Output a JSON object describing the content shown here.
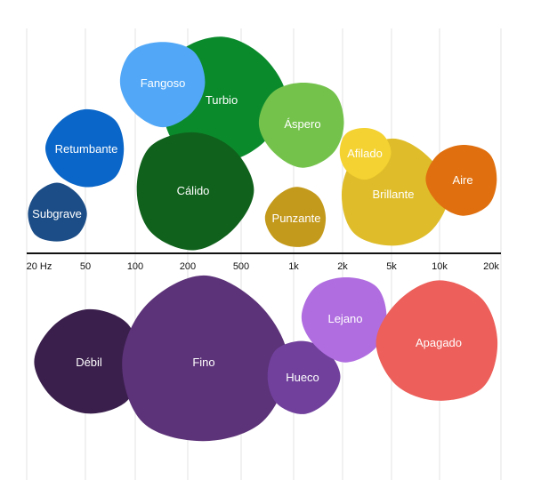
{
  "chart_data": {
    "type": "bubble-map",
    "axis": {
      "ticks": [
        "20 Hz",
        "50",
        "100",
        "200",
        "500",
        "1k",
        "2k",
        "5k",
        "10k",
        "20k"
      ]
    },
    "upper_group": [
      {
        "label": "Turbio",
        "color": "#0b8a2c"
      },
      {
        "label": "Fangoso",
        "color": "#52a8f7"
      },
      {
        "label": "Retumbante",
        "color": "#0a66c8"
      },
      {
        "label": "Subgrave",
        "color": "#1c4d87"
      },
      {
        "label": "Cálido",
        "color": "#0f611b"
      },
      {
        "label": "Áspero",
        "color": "#74c24c"
      },
      {
        "label": "Punzante",
        "color": "#c49a1c"
      },
      {
        "label": "Brillante",
        "color": "#dfbd2a"
      },
      {
        "label": "Afilado",
        "color": "#f4d231"
      },
      {
        "label": "Aire",
        "color": "#e0700f"
      }
    ],
    "lower_group": [
      {
        "label": "Débil",
        "color": "#3a1f4c"
      },
      {
        "label": "Fino",
        "color": "#5c3278"
      },
      {
        "label": "Hueco",
        "color": "#70409c"
      },
      {
        "label": "Lejano",
        "color": "#b06de0"
      },
      {
        "label": "Apagado",
        "color": "#ec5f5a"
      }
    ]
  }
}
